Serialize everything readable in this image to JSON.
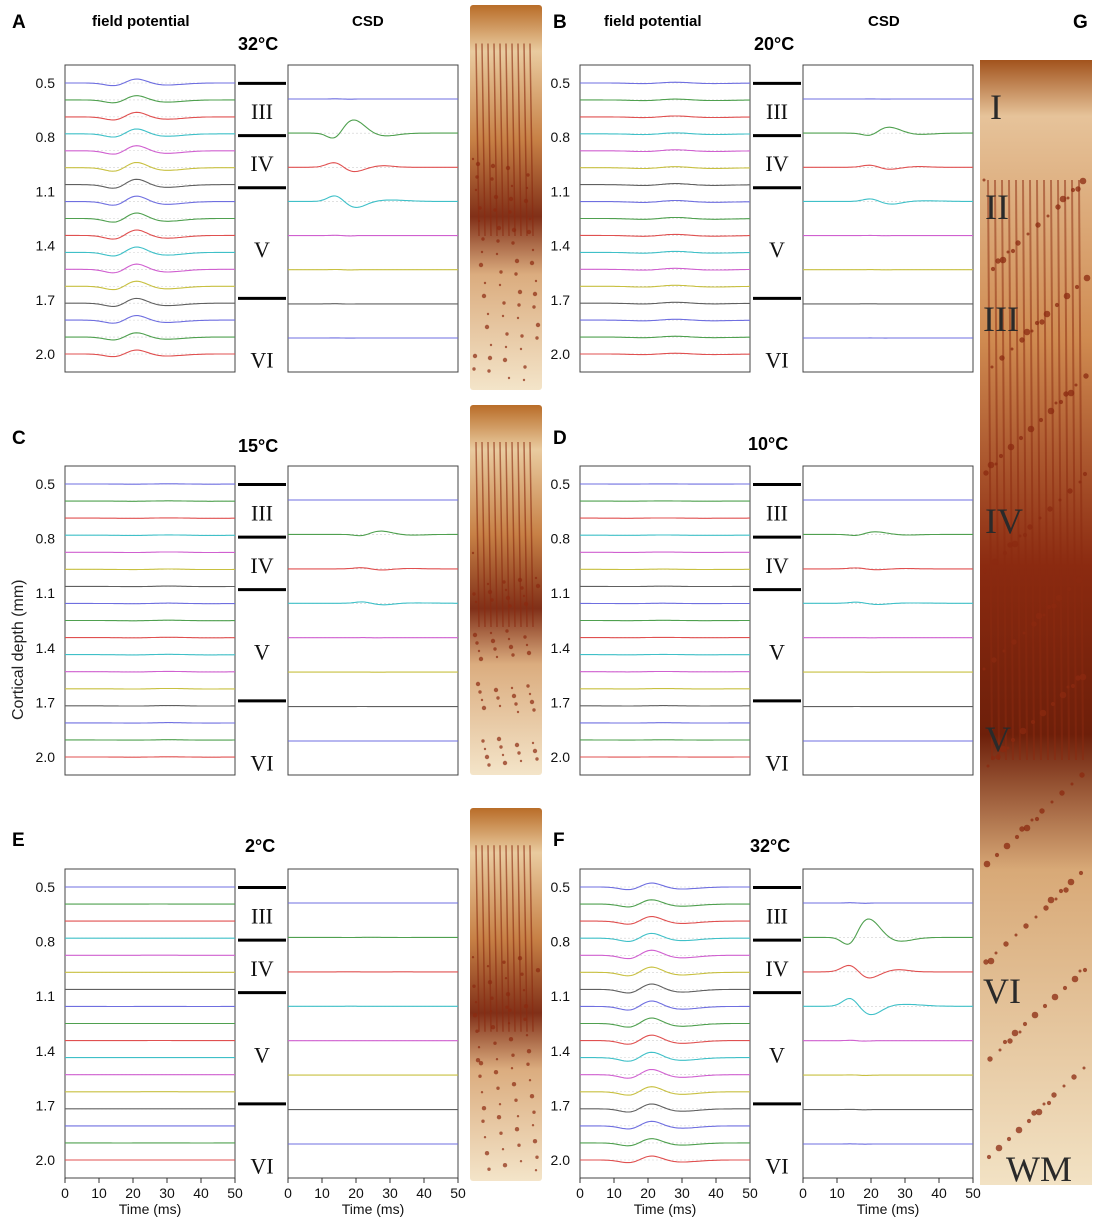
{
  "figure": {
    "g_panel_letter": "G",
    "g_layers": [
      "I",
      "II",
      "III",
      "IV",
      "V",
      "VI",
      "WM"
    ],
    "shared_ylabel": "Cortical depth (mm)",
    "colors": {
      "traces": [
        "#6f6fe0",
        "#4fa04f",
        "#e05050",
        "#3fc0c8",
        "#d060d0",
        "#c8c040",
        "#606060"
      ],
      "tissue_stain": "#8b2a10"
    }
  },
  "panels": [
    {
      "id": "A",
      "letter": "A",
      "temp": "32°C",
      "fp_title": "field potential",
      "csd_title": "CSD",
      "amp": 1.0,
      "csd_amp": 1.0,
      "peak": 20,
      "width": 6
    },
    {
      "id": "B",
      "letter": "B",
      "temp": "20°C",
      "fp_title": "field potential",
      "csd_title": "CSD",
      "amp": 0.35,
      "csd_amp": 0.45,
      "peak": 26,
      "width": 9
    },
    {
      "id": "C",
      "letter": "C",
      "temp": "15°C",
      "amp": 0.12,
      "csd_amp": 0.25,
      "peak": 28,
      "width": 10
    },
    {
      "id": "D",
      "letter": "D",
      "temp": "10°C",
      "amp": 0.08,
      "csd_amp": 0.2,
      "peak": 22,
      "width": 10
    },
    {
      "id": "E",
      "letter": "E",
      "temp": "2°C",
      "amp": 0.01,
      "csd_amp": 0.01,
      "peak": 25,
      "width": 10
    },
    {
      "id": "F",
      "letter": "F",
      "temp": "32°C",
      "amp": 1.0,
      "csd_amp": 1.4,
      "peak": 20,
      "width": 6
    }
  ],
  "layer_labels": [
    "III",
    "IV",
    "V",
    "VI"
  ],
  "chart_data": {
    "type": "line",
    "title": "",
    "xlabel": "Time (ms)",
    "ylabel": "Cortical depth (mm)",
    "xlim": [
      0,
      50
    ],
    "x_ticks": [
      0,
      10,
      20,
      30,
      40,
      50
    ],
    "y_ticks": [
      "0.5",
      "0.8",
      "1.1",
      "1.4",
      "1.7",
      "2.0"
    ],
    "field_potential_channels": 17,
    "csd_channels": 8,
    "series_description": "stacked voltage traces per cortical depth"
  }
}
